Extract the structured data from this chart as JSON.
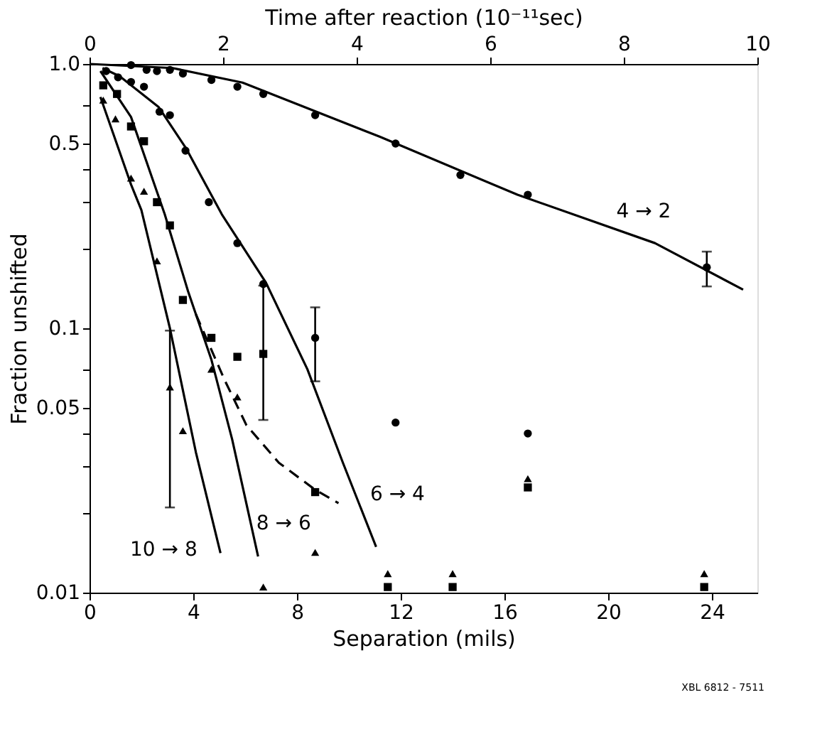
{
  "chart_data": {
    "type": "scatter",
    "xlabel": "Separation (mils)",
    "ylabel": "Fraction unshifted",
    "x2label": "Time after reaction (10⁻¹¹sec)",
    "xlim": [
      0,
      25.75
    ],
    "xticks": [
      0,
      4,
      8,
      12,
      16,
      20,
      24
    ],
    "x2lim": [
      0,
      10
    ],
    "x2ticks": [
      0,
      2,
      4,
      6,
      8,
      10
    ],
    "ylim": [
      0.01,
      1
    ],
    "log": true,
    "yticks": [
      {
        "value": 0.01,
        "label": "0.01"
      },
      {
        "value": 0.02,
        "label": null
      },
      {
        "value": 0.03,
        "label": null
      },
      {
        "value": 0.04,
        "label": null
      },
      {
        "value": 0.05,
        "label": "0.05"
      },
      {
        "value": 0.07,
        "label": null
      },
      {
        "value": 0.1,
        "label": "0.1"
      },
      {
        "value": 0.2,
        "label": null
      },
      {
        "value": 0.3,
        "label": null
      },
      {
        "value": 0.4,
        "label": null
      },
      {
        "value": 0.5,
        "label": "0.5"
      },
      {
        "value": 0.7,
        "label": null
      },
      {
        "value": 1,
        "label": "1.0"
      }
    ],
    "grid": false,
    "series": [
      {
        "type": "line",
        "name": "4 → 2",
        "color": "#000000",
        "line_style": "solid",
        "x": [
          0,
          3.2,
          5.9,
          11.2,
          16.5,
          21.8,
          25.2
        ],
        "values": [
          1,
          0.965,
          0.85,
          0.53,
          0.32,
          0.21,
          0.14
        ]
      },
      {
        "type": "line",
        "name": "6 → 4",
        "color": "#000000",
        "line_style": "solid",
        "x": [
          0.5,
          1.17,
          2.66,
          3.72,
          5.1,
          6.8,
          8.4,
          9.77,
          11.05
        ],
        "values": [
          0.965,
          0.897,
          0.688,
          0.48,
          0.27,
          0.149,
          0.07,
          0.031,
          0.0149
        ]
      },
      {
        "type": "line",
        "name": "8 → 6",
        "color": "#000000",
        "line_style": "solid",
        "x": [
          0.42,
          1.6,
          2.9,
          3.8,
          4.7,
          5.5,
          6.5
        ],
        "values": [
          0.94,
          0.63,
          0.27,
          0.138,
          0.076,
          0.038,
          0.0137
        ]
      },
      {
        "type": "line",
        "color": "#000000",
        "line_style": "dashed",
        "x": [
          4.1,
          5.2,
          6.05,
          7.3,
          8.7,
          9.6
        ],
        "values": [
          0.113,
          0.064,
          0.043,
          0.031,
          0.0245,
          0.0218
        ]
      },
      {
        "type": "line",
        "name": "10 → 8",
        "color": "#000000",
        "line_style": "solid",
        "x": [
          0.42,
          1.6,
          2.0,
          3.1,
          4.1,
          5.05
        ],
        "values": [
          0.75,
          0.35,
          0.28,
          0.1,
          0.034,
          0.0141
        ]
      },
      {
        "marker": "circle",
        "color": "#000000",
        "x": [
          1.6,
          2.2,
          2.6,
          3.1,
          3.6,
          4.7,
          5.7,
          6.7,
          8.7,
          11.8,
          14.3,
          16.9,
          23.8
        ],
        "values": [
          0.99,
          0.95,
          0.94,
          0.95,
          0.92,
          0.87,
          0.82,
          0.77,
          0.64,
          0.5,
          0.38,
          0.32,
          0.17
        ],
        "errors": [
          null,
          null,
          null,
          null,
          null,
          null,
          null,
          null,
          null,
          null,
          null,
          null,
          [
            0.144,
            0.195
          ]
        ]
      },
      {
        "marker": "circle",
        "color": "#000000",
        "x": [
          0.64,
          1.1,
          1.6,
          2.1,
          2.7,
          3.1,
          3.7,
          4.6,
          5.7,
          6.7,
          8.7,
          11.8,
          16.9
        ],
        "values": [
          0.94,
          0.89,
          0.855,
          0.82,
          0.66,
          0.64,
          0.47,
          0.3,
          0.21,
          0.147,
          0.092,
          0.044,
          0.04
        ],
        "errors": [
          null,
          null,
          null,
          null,
          null,
          null,
          null,
          null,
          null,
          null,
          [
            0.063,
            0.12
          ],
          null,
          null
        ]
      },
      {
        "marker": "square",
        "color": "#000000",
        "x": [
          0.53,
          1.06,
          1.6,
          2.1,
          2.6,
          3.1,
          3.6,
          4.7,
          5.7,
          6.7,
          8.7,
          16.9,
          11.5,
          14,
          23.7
        ],
        "values": [
          0.83,
          0.77,
          0.58,
          0.51,
          0.3,
          0.245,
          0.128,
          0.092,
          0.078,
          0.08,
          0.024,
          0.025,
          0.0105,
          0.0105,
          0.0105
        ],
        "errors": [
          null,
          null,
          null,
          null,
          null,
          null,
          null,
          null,
          null,
          [
            0.045,
            0.145
          ],
          null,
          null,
          null,
          null,
          null
        ]
      },
      {
        "marker": "triangle",
        "color": "#000000",
        "x": [
          0.53,
          1.0,
          1.6,
          2.1,
          2.6,
          3.1,
          3.6,
          4.7,
          5.7,
          6.7,
          8.7,
          16.9,
          11.5,
          14,
          23.7
        ],
        "values": [
          0.73,
          0.62,
          0.37,
          0.33,
          0.18,
          0.06,
          0.041,
          0.07,
          0.055,
          0.0105,
          0.0142,
          0.027,
          0.0118,
          0.0118,
          0.0118
        ],
        "errors": [
          null,
          null,
          null,
          null,
          null,
          [
            0.021,
            0.098
          ],
          null,
          null,
          null,
          null,
          null,
          null,
          null,
          null,
          null
        ]
      }
    ],
    "annotations": [
      "XBL 6812 - 7511"
    ]
  }
}
